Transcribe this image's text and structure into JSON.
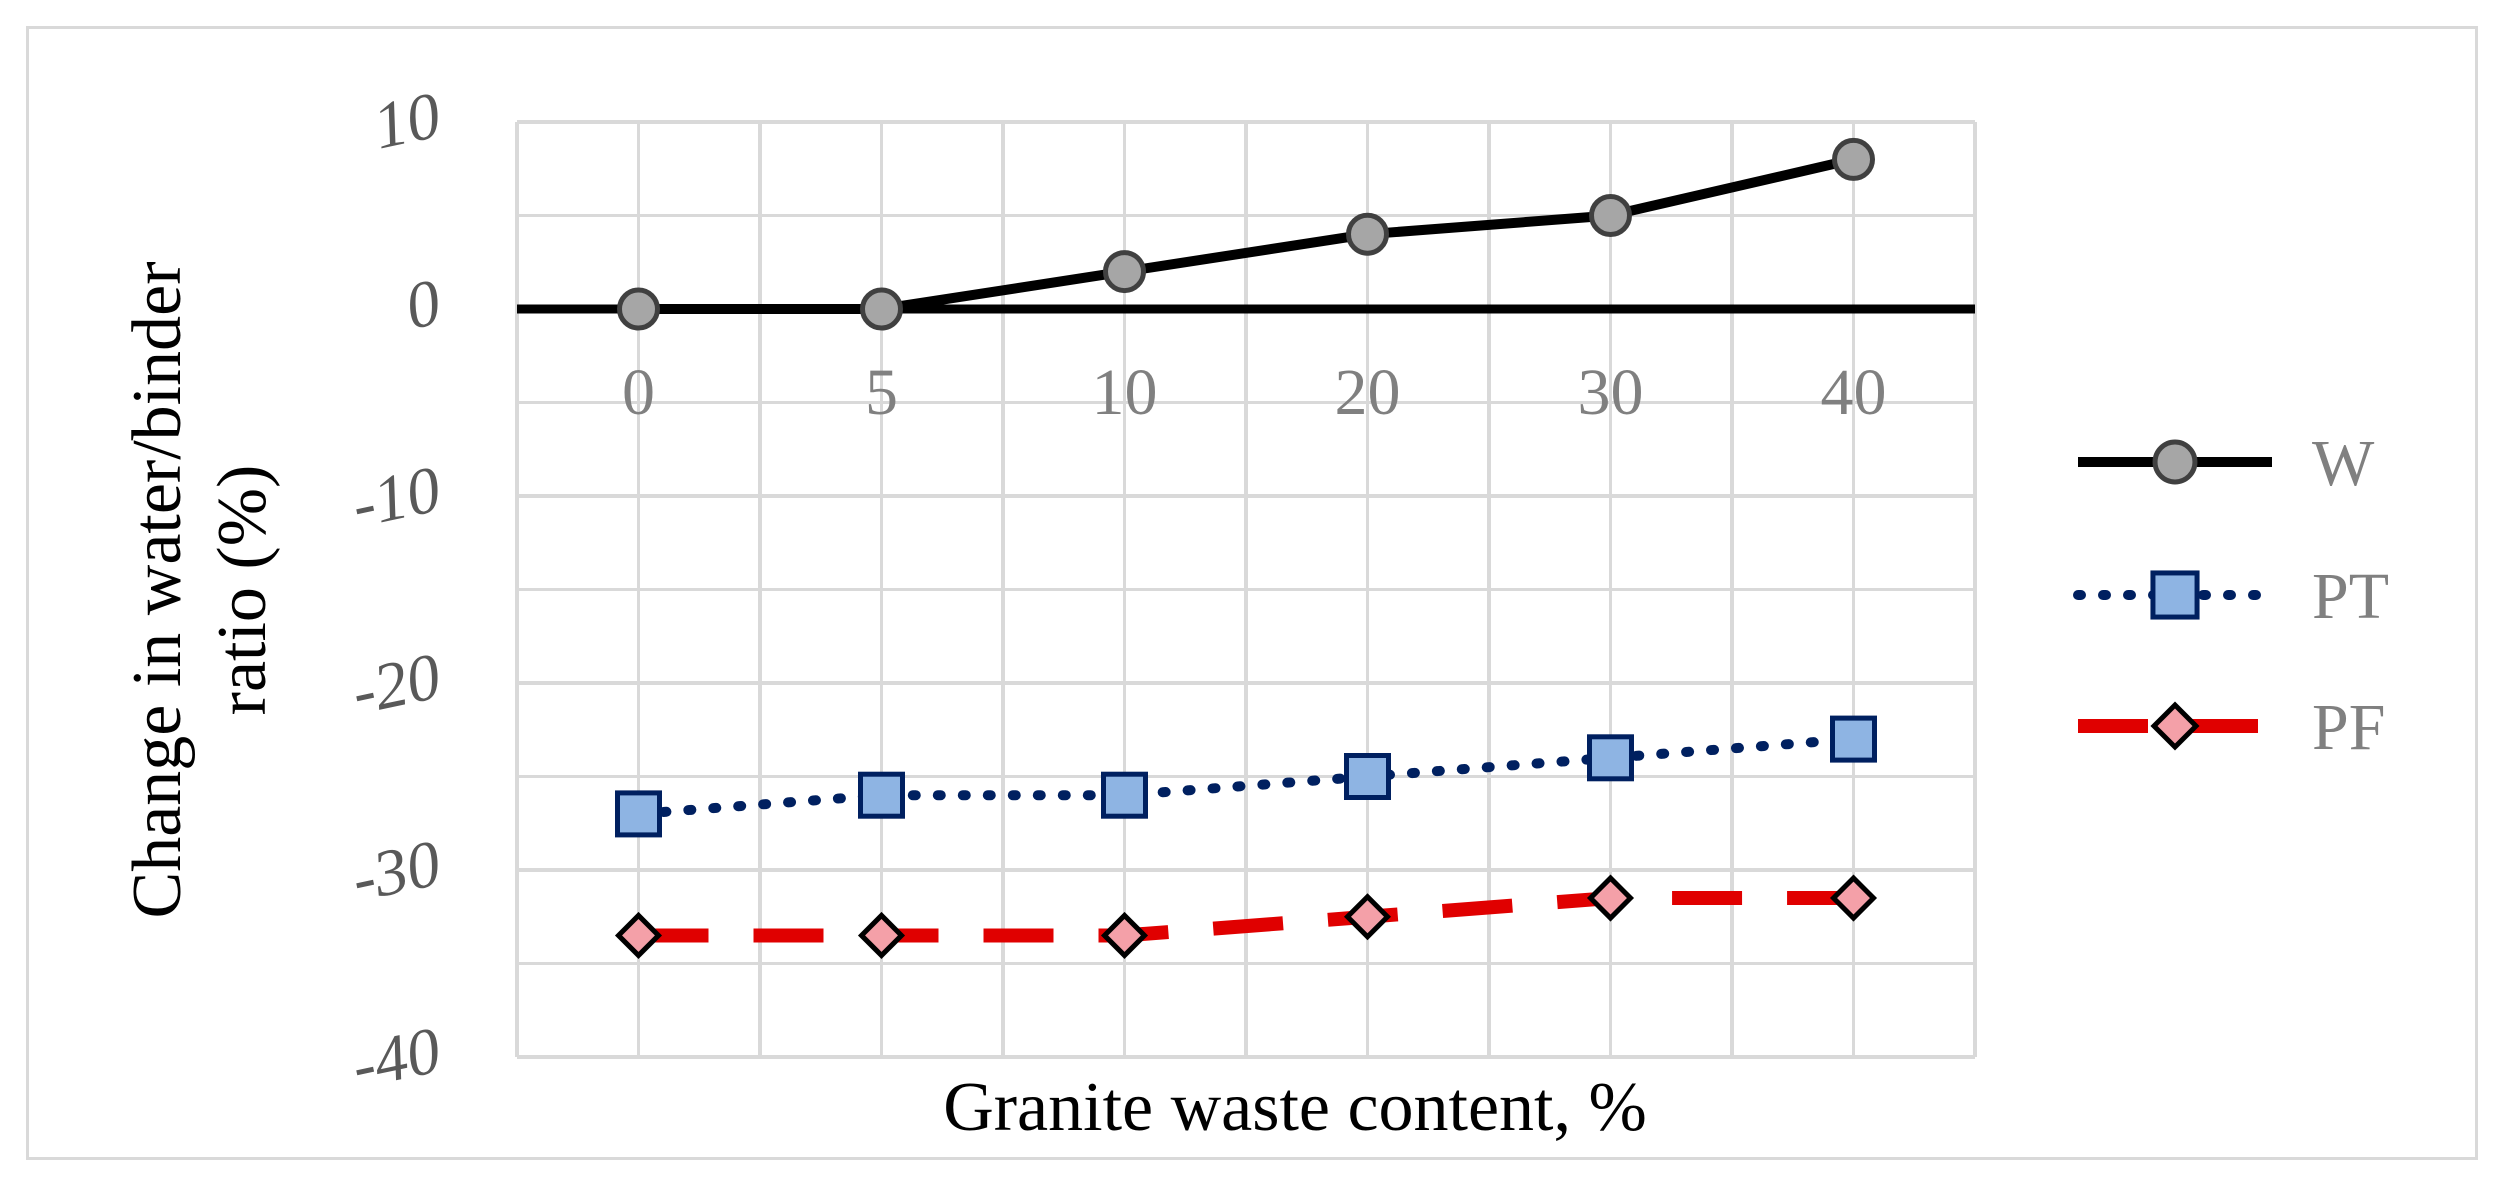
{
  "chart_data": {
    "type": "line",
    "title": "",
    "xlabel": "Granite waste content, %",
    "ylabel": "Change in water/binder ratio (%)",
    "ylabel_lines": [
      "Change in water/binder",
      "ratio (%)"
    ],
    "categories": [
      "0",
      "5",
      "10",
      "20",
      "30",
      "40"
    ],
    "ylim": [
      -40,
      10
    ],
    "yticks": [
      10,
      0,
      -10,
      -20,
      -30,
      -40
    ],
    "ytick_labels": [
      "10",
      "0",
      "-10",
      "-20",
      "-30",
      "-40"
    ],
    "grid": true,
    "legend": "right",
    "series": [
      {
        "name": "W",
        "values": [
          0,
          0,
          2,
          4,
          5,
          8
        ],
        "line_color": "#000000",
        "marker": "circle",
        "marker_fill": "#a6a6a6",
        "marker_edge": "#404040",
        "line_style": "solid"
      },
      {
        "name": "PT",
        "values": [
          -27,
          -26,
          -26,
          -25,
          -24,
          -23
        ],
        "line_color": "#002060",
        "marker": "square",
        "marker_fill": "#8eb4e3",
        "marker_edge": "#002060",
        "line_style": "dotted"
      },
      {
        "name": "PF",
        "values": [
          -33.5,
          -33.5,
          -33.5,
          -32.5,
          -31.5,
          -31.5
        ],
        "line_color": "#e00000",
        "marker": "diamond",
        "marker_fill": "#f4a0a8",
        "marker_edge": "#000000",
        "line_style": "dashed"
      }
    ],
    "colors": {
      "grid": "#d9d9d9",
      "category_labels": "#808080",
      "tick_labels": "#595959",
      "text": "#000000"
    }
  }
}
